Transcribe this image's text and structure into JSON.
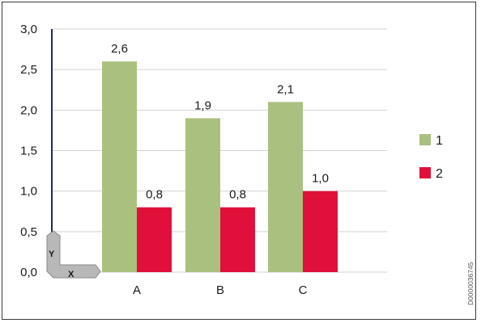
{
  "chart_data": {
    "type": "bar",
    "categories": [
      "A",
      "B",
      "C"
    ],
    "series": [
      {
        "name": "1",
        "values": [
          2.6,
          1.9,
          2.1
        ],
        "labels": [
          "2,6",
          "1,9",
          "2,1"
        ],
        "color": "#aac07f"
      },
      {
        "name": "2",
        "values": [
          0.8,
          0.8,
          1.0
        ],
        "labels": [
          "0,8",
          "0,8",
          "1,0"
        ],
        "color": "#e0103a"
      }
    ],
    "y_ticks": [
      "0,0",
      "0,5",
      "1,0",
      "1,5",
      "2,0",
      "2,5",
      "3,0"
    ],
    "ylim": [
      0,
      3
    ],
    "grid": true,
    "legend": "right",
    "axis_axes_icon": {
      "x_letter": "X",
      "y_letter": "Y"
    },
    "doc_code": "D0000036745"
  }
}
